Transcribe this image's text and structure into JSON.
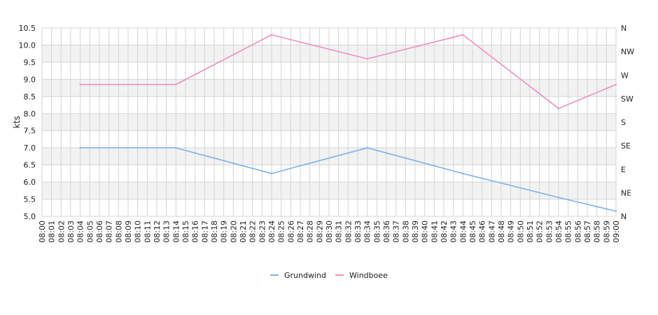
{
  "chart_data": {
    "type": "line",
    "ylabel": "kts",
    "ylim": [
      5.0,
      10.5
    ],
    "y_ticks": [
      "5.0",
      "5.5",
      "6.0",
      "6.5",
      "7.0",
      "7.5",
      "8.0",
      "8.5",
      "9.0",
      "9.5",
      "10.0",
      "10.5"
    ],
    "y2_ticks": [
      "N",
      "NE",
      "E",
      "SE",
      "S",
      "SW",
      "W",
      "NW",
      "N"
    ],
    "categories": [
      "08:00",
      "08:01",
      "08:02",
      "08:03",
      "08:04",
      "08:05",
      "08:06",
      "08:07",
      "08:08",
      "08:09",
      "08:10",
      "08:11",
      "08:12",
      "08:13",
      "08:14",
      "08:15",
      "08:16",
      "08:17",
      "08:18",
      "08:19",
      "08:20",
      "08:21",
      "08:22",
      "08:23",
      "08:24",
      "08:25",
      "08:26",
      "08:27",
      "08:28",
      "08:29",
      "08:30",
      "08:31",
      "08:32",
      "08:33",
      "08:34",
      "08:35",
      "08:36",
      "08:37",
      "08:38",
      "08:39",
      "08:40",
      "08:41",
      "08:42",
      "08:43",
      "08:44",
      "08:45",
      "08:46",
      "08:47",
      "08:48",
      "08:49",
      "08:50",
      "08:51",
      "08:52",
      "08:53",
      "08:54",
      "08:55",
      "08:56",
      "08:57",
      "08:58",
      "08:59",
      "09:00"
    ],
    "grid": true,
    "legend_position": "bottom-center",
    "series": [
      {
        "name": "Grundwind",
        "color": "#7ab3ea",
        "points": [
          {
            "x": "08:04",
            "y": 7.0
          },
          {
            "x": "08:14",
            "y": 7.0
          },
          {
            "x": "08:24",
            "y": 6.25
          },
          {
            "x": "08:34",
            "y": 7.0
          },
          {
            "x": "08:44",
            "y": 6.25
          },
          {
            "x": "08:54",
            "y": 5.55
          },
          {
            "x": "09:00",
            "y": 5.15
          }
        ]
      },
      {
        "name": "Windboee",
        "color": "#f08ec4",
        "points": [
          {
            "x": "08:04",
            "y": 8.85
          },
          {
            "x": "08:14",
            "y": 8.85
          },
          {
            "x": "08:24",
            "y": 10.3
          },
          {
            "x": "08:34",
            "y": 9.6
          },
          {
            "x": "08:44",
            "y": 10.3
          },
          {
            "x": "08:54",
            "y": 8.15
          },
          {
            "x": "09:00",
            "y": 8.85
          }
        ]
      }
    ]
  }
}
